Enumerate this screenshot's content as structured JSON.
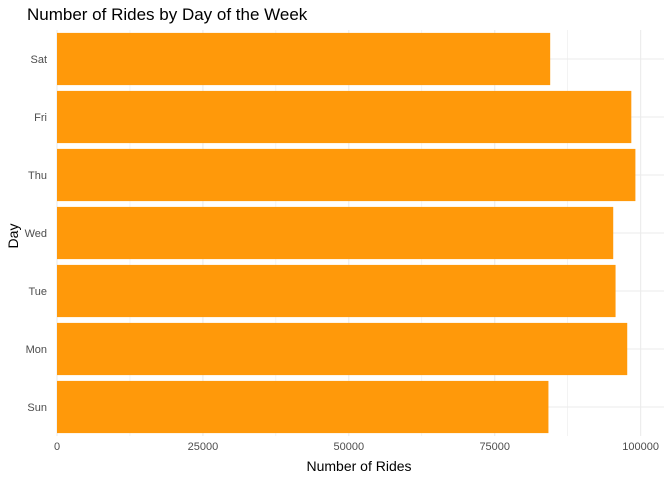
{
  "chart_data": {
    "type": "bar",
    "orientation": "horizontal",
    "title": "Number of Rides by Day of the Week",
    "xlabel": "Number of Rides",
    "ylabel": "Day",
    "categories": [
      "Sun",
      "Mon",
      "Tue",
      "Wed",
      "Thu",
      "Fri",
      "Sat"
    ],
    "values": [
      84200,
      97700,
      95700,
      95300,
      99100,
      98400,
      84500
    ],
    "xlim": [
      0,
      104000
    ],
    "xticks": [
      0,
      25000,
      50000,
      75000,
      100000
    ],
    "xtick_labels": [
      "0",
      "25000",
      "50000",
      "75000",
      "100000"
    ],
    "grid": true,
    "legend": "none",
    "bar_color": "#FF990A",
    "grid_color": "#EBEBEB"
  }
}
